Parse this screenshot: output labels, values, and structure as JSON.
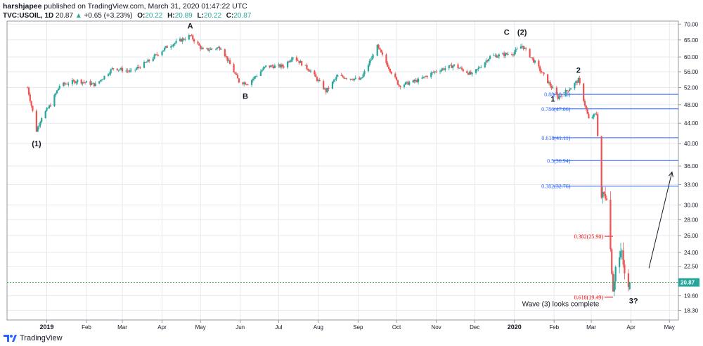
{
  "header": {
    "author": "harshjapee",
    "published": "published on TradingView.com, March 31, 2020 01:47:22 UTC",
    "symbol": "TVC:USOIL, 1D",
    "last": "20.87",
    "change": "+0.65 (+3.23%)",
    "o_label": "O:",
    "o_value": "20.22",
    "h_label": "H:",
    "h_value": "20.89",
    "l_label": "L:",
    "l_value": "20.22",
    "c_label": "C:",
    "c_value": "20.87"
  },
  "footer": {
    "brand": "TradingView"
  },
  "colors": {
    "up": "#26a69a",
    "down": "#ef5350",
    "fib_blue": "#2962ff",
    "fib_red": "#ff0000",
    "last_line": "#4caf50",
    "last_badge": "#26a69a",
    "grid": "#e6e9ef"
  },
  "chart_data": {
    "type": "candlestick",
    "title": "TVC:USOIL, 1D",
    "ylim": [
      17.5,
      71
    ],
    "y_scale": "log",
    "y_ticks": [
      "70.00",
      "65.00",
      "60.00",
      "56.00",
      "52.00",
      "48.00",
      "44.00",
      "40.00",
      "36.00",
      "33.00",
      "30.00",
      "28.00",
      "26.00",
      "24.00",
      "22.50",
      "20.87",
      "19.60",
      "18.30"
    ],
    "x_ticks": [
      "2019",
      "Feb",
      "Mar",
      "Apr",
      "May",
      "Jun",
      "Jul",
      "Aug",
      "Sep",
      "Oct",
      "Nov",
      "Dec",
      "2020",
      "Feb",
      "Mar",
      "Apr",
      "May"
    ],
    "last_price": "20.87",
    "price_path": [
      [
        "2018-12-17",
        52.0
      ],
      [
        "2018-12-21",
        46.5
      ],
      [
        "2018-12-24",
        42.5
      ],
      [
        "2018-12-28",
        45.3
      ],
      [
        "2019-01-04",
        48.0
      ],
      [
        "2019-01-11",
        52.5
      ],
      [
        "2019-01-25",
        53.7
      ],
      [
        "2019-02-08",
        52.7
      ],
      [
        "2019-02-22",
        57.0
      ],
      [
        "2019-03-08",
        56.0
      ],
      [
        "2019-03-22",
        59.0
      ],
      [
        "2019-04-05",
        63.0
      ],
      [
        "2019-04-23",
        66.3
      ],
      [
        "2019-05-03",
        61.9
      ],
      [
        "2019-05-17",
        62.8
      ],
      [
        "2019-05-31",
        53.5
      ],
      [
        "2019-06-07",
        53.0
      ],
      [
        "2019-06-21",
        57.4
      ],
      [
        "2019-07-05",
        57.5
      ],
      [
        "2019-07-12",
        60.2
      ],
      [
        "2019-07-26",
        56.2
      ],
      [
        "2019-08-07",
        51.1
      ],
      [
        "2019-08-16",
        54.9
      ],
      [
        "2019-09-03",
        53.9
      ],
      [
        "2019-09-16",
        63.0
      ],
      [
        "2019-09-27",
        55.9
      ],
      [
        "2019-10-03",
        52.5
      ],
      [
        "2019-10-18",
        53.8
      ],
      [
        "2019-11-01",
        56.2
      ],
      [
        "2019-11-15",
        57.7
      ],
      [
        "2019-11-29",
        55.2
      ],
      [
        "2019-12-13",
        60.1
      ],
      [
        "2019-12-31",
        61.1
      ],
      [
        "2020-01-07",
        63.3
      ],
      [
        "2020-01-17",
        58.5
      ],
      [
        "2020-01-31",
        51.6
      ],
      [
        "2020-02-04",
        49.6
      ],
      [
        "2020-02-14",
        52.0
      ],
      [
        "2020-02-20",
        53.9
      ],
      [
        "2020-02-28",
        44.8
      ],
      [
        "2020-03-05",
        46.0
      ],
      [
        "2020-03-09",
        31.1
      ],
      [
        "2020-03-13",
        31.7
      ],
      [
        "2020-03-18",
        20.4
      ],
      [
        "2020-03-20",
        22.4
      ],
      [
        "2020-03-25",
        24.0
      ],
      [
        "2020-03-27",
        21.5
      ],
      [
        "2020-03-30",
        20.1
      ],
      [
        "2020-03-31",
        20.87
      ]
    ],
    "fib_levels": [
      {
        "label": "0.88(50.38)",
        "value": 50.38,
        "color": "blue"
      },
      {
        "label": "0.786(47.06)",
        "value": 47.06,
        "color": "blue"
      },
      {
        "label": "0.618(41.11)",
        "value": 41.11,
        "color": "blue"
      },
      {
        "label": "0.5(36.94)",
        "value": 36.94,
        "color": "blue"
      },
      {
        "label": "0.382(32.76)",
        "value": 32.76,
        "color": "blue"
      },
      {
        "label": "0.382(25.90)",
        "value": 25.9,
        "color": "red"
      },
      {
        "label": "0.618(19.49)",
        "value": 19.49,
        "color": "red"
      }
    ],
    "annotations": [
      {
        "text": "(1)",
        "date": "2018-12-24",
        "price": 39.5
      },
      {
        "text": "A",
        "date": "2019-04-23",
        "price": 68.6
      },
      {
        "text": "B",
        "date": "2019-06-05",
        "price": 49.3
      },
      {
        "text": "C",
        "date": "2019-12-26",
        "price": 66.6
      },
      {
        "text": "(2)",
        "date": "2020-01-07",
        "price": 66.6
      },
      {
        "text": "1",
        "date": "2020-01-31",
        "price": 48.7
      },
      {
        "text": "2",
        "date": "2020-02-20",
        "price": 55.7
      },
      {
        "text": "3?",
        "date": "2020-04-03",
        "price": 18.9
      },
      {
        "text": "Wave (3) looks complete",
        "date": "2020-01-07",
        "price": 18.65
      }
    ],
    "arrow": {
      "from_date": "2020-04-15",
      "from_price": 22.3,
      "to_date": "2020-05-03",
      "to_price": 35.0
    }
  }
}
